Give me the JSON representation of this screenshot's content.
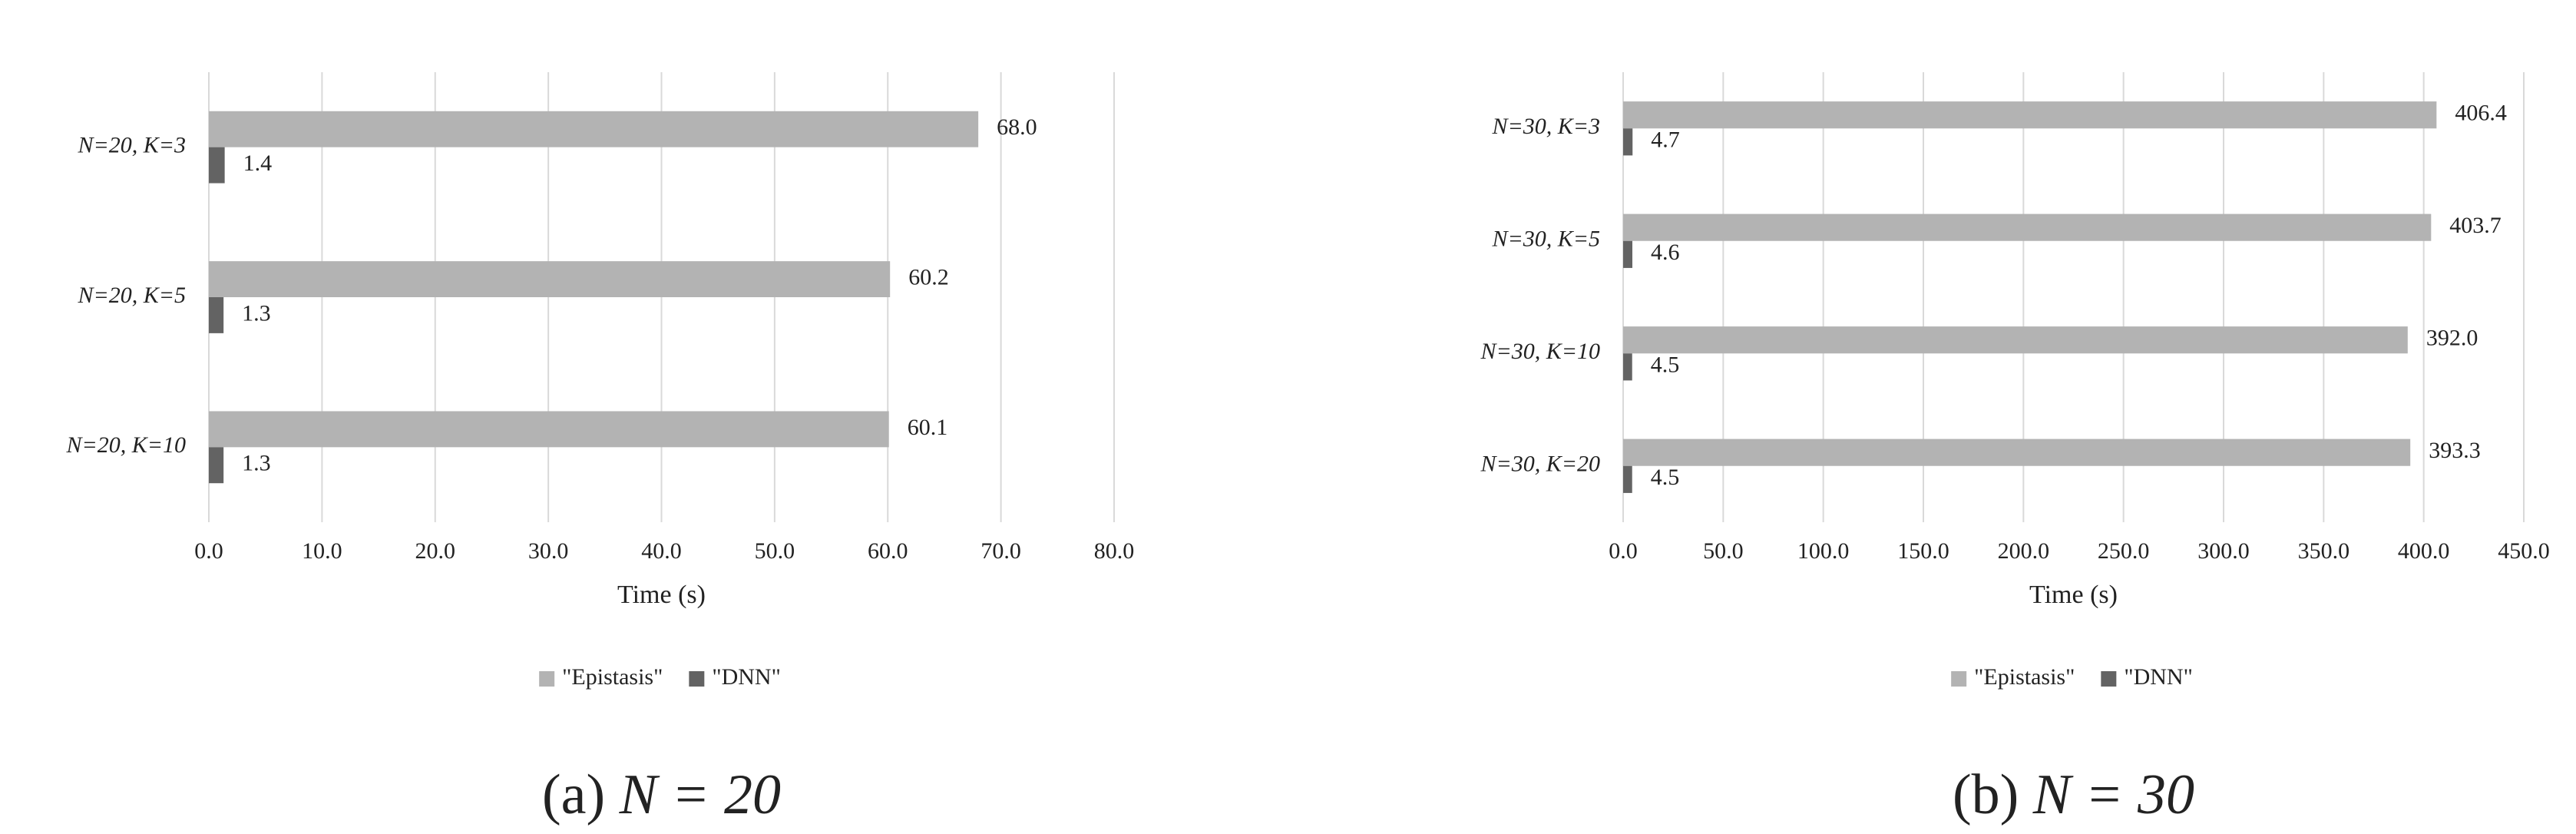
{
  "chart_data": [
    {
      "type": "barh",
      "xlabel": "Time (s)",
      "caption_label": "(a)",
      "caption_math": "N = 20",
      "categories": [
        "N=20, K=3",
        "N=20, K=5",
        "N=20, K=10"
      ],
      "series": [
        {
          "name": "\"Epistasis\"",
          "color": "#b3b3b3",
          "values": [
            68.0,
            60.2,
            60.1
          ],
          "value_labels": [
            "68.0",
            "60.2",
            "60.1"
          ]
        },
        {
          "name": "\"DNN\"",
          "color": "#636363",
          "values": [
            1.4,
            1.3,
            1.3
          ],
          "value_labels": [
            "1.4",
            "1.3",
            "1.3"
          ]
        }
      ],
      "xlim": [
        0,
        80
      ],
      "xticks": [
        {
          "value": 0,
          "label": "0.0"
        },
        {
          "value": 10,
          "label": "10.0"
        },
        {
          "value": 20,
          "label": "20.0"
        },
        {
          "value": 30,
          "label": "30.0"
        },
        {
          "value": 40,
          "label": "40.0"
        },
        {
          "value": 50,
          "label": "50.0"
        },
        {
          "value": 60,
          "label": "60.0"
        },
        {
          "value": 70,
          "label": "70.0"
        },
        {
          "value": 80,
          "label": "80.0"
        }
      ],
      "grid": true,
      "legend": "bottom"
    },
    {
      "type": "barh",
      "xlabel": "Time (s)",
      "caption_label": "(b)",
      "caption_math": "N = 30",
      "categories": [
        "N=30, K=3",
        "N=30, K=5",
        "N=30, K=10",
        "N=30, K=20"
      ],
      "series": [
        {
          "name": "\"Epistasis\"",
          "color": "#b3b3b3",
          "values": [
            406.4,
            403.7,
            392.0,
            393.3
          ],
          "value_labels": [
            "406.4",
            "403.7",
            "392.0",
            "393.3"
          ]
        },
        {
          "name": "\"DNN\"",
          "color": "#636363",
          "values": [
            4.7,
            4.6,
            4.5,
            4.5
          ],
          "value_labels": [
            "4.7",
            "4.6",
            "4.5",
            "4.5"
          ]
        }
      ],
      "xlim": [
        0,
        450
      ],
      "xticks": [
        {
          "value": 0,
          "label": "0.0"
        },
        {
          "value": 50,
          "label": "50.0"
        },
        {
          "value": 100,
          "label": "100.0"
        },
        {
          "value": 150,
          "label": "150.0"
        },
        {
          "value": 200,
          "label": "200.0"
        },
        {
          "value": 250,
          "label": "250.0"
        },
        {
          "value": 300,
          "label": "300.0"
        },
        {
          "value": 350,
          "label": "350.0"
        },
        {
          "value": 400,
          "label": "400.0"
        },
        {
          "value": 450,
          "label": "450.0"
        }
      ],
      "grid": true,
      "legend": "bottom"
    }
  ]
}
